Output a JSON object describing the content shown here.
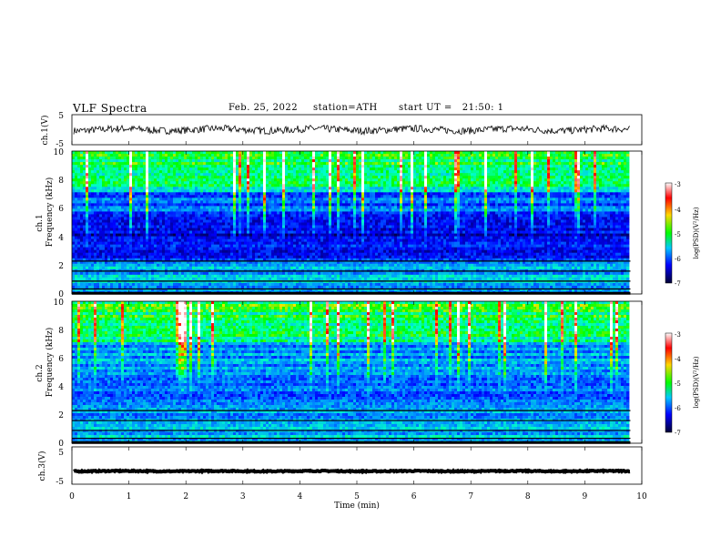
{
  "header": {
    "title": "VLF Spectra",
    "date": "Feb. 25, 2022",
    "station": "station=ATH",
    "start_ut": "start UT =   21:50: 1"
  },
  "colorbar": {
    "label": "log(PSD)(V²/Hz)",
    "ticks": [
      "-3",
      "-4",
      "-5",
      "-6",
      "-7"
    ],
    "colors": [
      "#ffffff",
      "#ff0000",
      "#ffd700",
      "#00ff00",
      "#00c8ff",
      "#0000ff",
      "#000033"
    ]
  },
  "chart_data": [
    {
      "type": "line",
      "name": "ch1-voltage",
      "ylabel": "ch.1(V)",
      "yticks": [
        "5",
        "-5"
      ],
      "ylim": [
        -5,
        5
      ],
      "xlim": [
        0,
        9.8
      ],
      "baseline": 0,
      "noise_amplitude": 1.2
    },
    {
      "type": "heatmap",
      "name": "ch1-spectrogram",
      "ylabel_top": "ch.1",
      "ylabel": "Frequency (kHz)",
      "yticks": [
        "0",
        "2",
        "4",
        "6",
        "8",
        "10"
      ],
      "ylim": [
        0,
        10
      ],
      "xlim": [
        0,
        9.8
      ],
      "clim": [
        -7,
        -3
      ]
    },
    {
      "type": "heatmap",
      "name": "ch2-spectrogram",
      "ylabel_top": "ch.2",
      "ylabel": "Frequency (kHz)",
      "yticks": [
        "0",
        "2",
        "4",
        "6",
        "8",
        "10"
      ],
      "ylim": [
        0,
        10
      ],
      "xlim": [
        0,
        9.8
      ],
      "clim": [
        -7,
        -3
      ]
    },
    {
      "type": "line",
      "name": "ch3-voltage",
      "ylabel": "ch.3(V)",
      "yticks": [
        "5",
        "-5"
      ],
      "ylim": [
        -5,
        5
      ],
      "xlim": [
        0,
        9.8
      ],
      "baseline": -1.5,
      "noise_amplitude": 0.15,
      "xlabel": "Time (min)",
      "xticks": [
        "0",
        "1",
        "2",
        "3",
        "4",
        "5",
        "6",
        "7",
        "8",
        "9",
        "10"
      ],
      "xrange": [
        0,
        10
      ]
    }
  ]
}
